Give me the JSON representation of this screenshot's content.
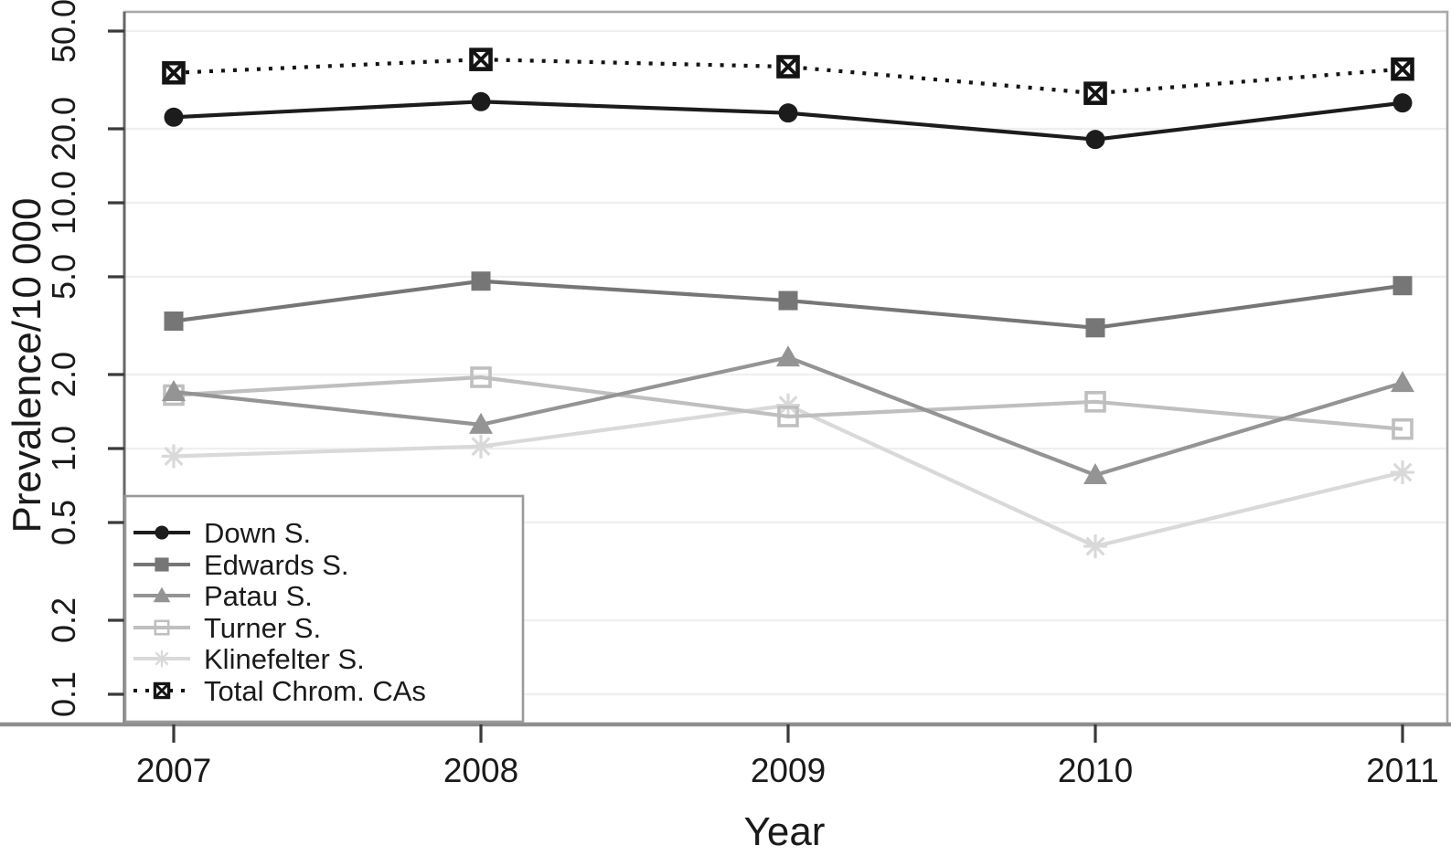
{
  "figure": {
    "background": "#ffffff",
    "xlabel": "Year",
    "ylabel": "Prevalence/10 000"
  },
  "chart_data": {
    "type": "line",
    "title": "",
    "xlabel": "Year",
    "ylabel": "Prevalence/10 000",
    "x_scale": "linear",
    "y_scale": "log10",
    "grid": "horizontal-faint",
    "legend_position": "bottom-left",
    "categories": [
      2007,
      2008,
      2009,
      2010,
      2011
    ],
    "x_tick_labels": [
      "2007",
      "2008",
      "2009",
      "2010",
      "2011"
    ],
    "y_ticks": [
      50.0,
      20.0,
      10.0,
      5.0,
      2.0,
      1.0,
      0.5,
      0.2,
      0.1
    ],
    "y_tick_labels": [
      "50.0",
      "20.0",
      "10.0",
      "5.0",
      "2.0",
      "1.0",
      "0.5",
      "0.2",
      "0.1"
    ],
    "ylim": [
      0.085,
      60
    ],
    "series": [
      {
        "name": "Down S.",
        "marker": "filled-circle",
        "line": "solid",
        "color": "#1c1c1c",
        "values": [
          22.3,
          25.8,
          23.2,
          18.1,
          25.5
        ]
      },
      {
        "name": "Edwards S.",
        "marker": "filled-square",
        "line": "solid",
        "color": "#767676",
        "values": [
          3.3,
          4.8,
          4.0,
          3.1,
          4.6
        ]
      },
      {
        "name": "Patau S.",
        "marker": "filled-triangle",
        "line": "solid",
        "color": "#949494",
        "values": [
          1.7,
          1.25,
          2.35,
          0.78,
          1.85
        ]
      },
      {
        "name": "Turner S.",
        "marker": "open-square",
        "line": "solid",
        "color": "#bfbfbf",
        "values": [
          1.65,
          1.95,
          1.35,
          1.55,
          1.2
        ]
      },
      {
        "name": "Klinefelter S.",
        "marker": "asterisk",
        "line": "solid",
        "color": "#d9d9d9",
        "values": [
          0.93,
          1.02,
          1.5,
          0.4,
          0.8
        ]
      },
      {
        "name": "Total Chrom. CAs",
        "marker": "boxed-x",
        "line": "dotted",
        "color": "#141414",
        "values": [
          33.8,
          38.3,
          35.8,
          27.9,
          35.0
        ]
      }
    ]
  },
  "colors": {
    "background": "#ffffff",
    "grid": "#efefef",
    "plot_border": "#a8a8a8",
    "axis_line": "#8e8e8e",
    "tick_mark": "#3a3a3a",
    "tick_text": "#1a1a1a",
    "legend_border": "#9a9a9a",
    "legend_bg": "#ffffff"
  }
}
